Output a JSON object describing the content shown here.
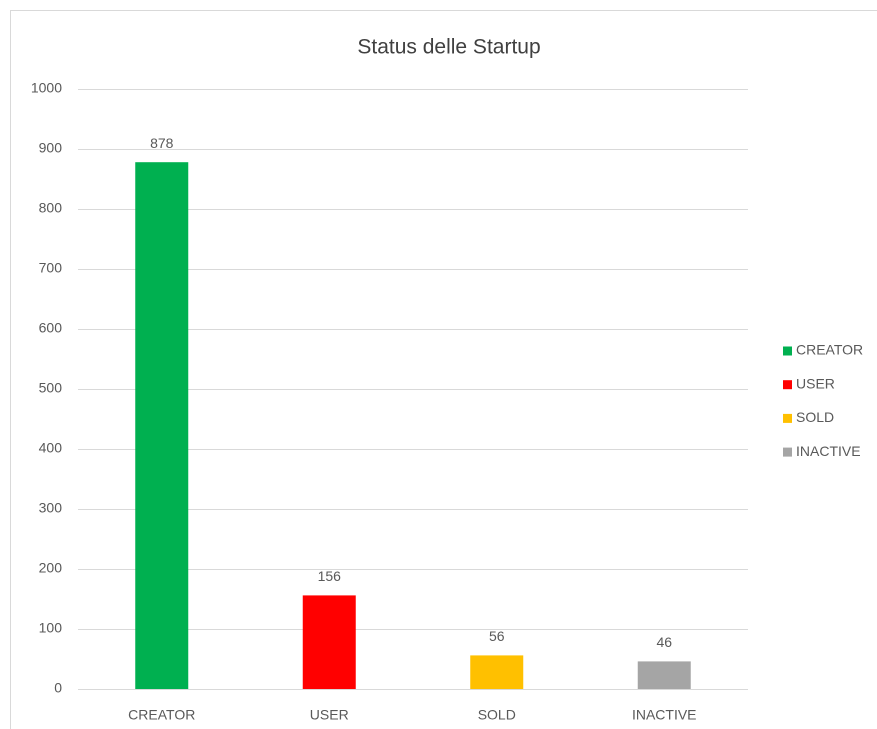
{
  "chart_data": {
    "type": "bar",
    "title": "Status delle Startup",
    "categories": [
      "CREATOR",
      "USER",
      "SOLD",
      "INACTIVE"
    ],
    "values": [
      878,
      156,
      56,
      46
    ],
    "colors": [
      "#00b050",
      "#ff0000",
      "#ffc000",
      "#a5a5a5"
    ],
    "ylim": [
      0,
      1000
    ],
    "yticks": [
      0,
      100,
      200,
      300,
      400,
      500,
      600,
      700,
      800,
      900,
      1000
    ],
    "grid": true,
    "legend": "right"
  }
}
